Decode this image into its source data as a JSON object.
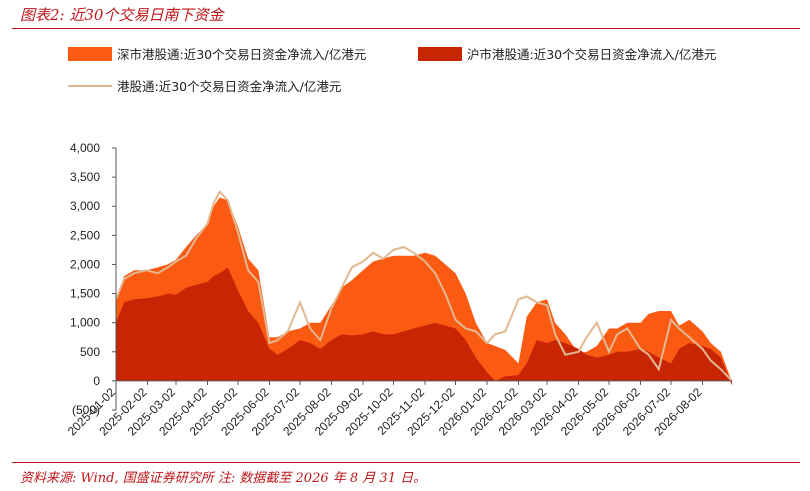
{
  "figure_title": "图表2:  近30个交易日南下资金",
  "source_note": "资料来源:  Wind, 国盛证券研究所    注:  数据截至 2026 年 8 月 31 日。",
  "colors": {
    "shenzhen": "#fb5a13",
    "shanghai": "#c82505",
    "total": "#e2b891",
    "accent": "#c0161a"
  },
  "chart_data": {
    "type": "area",
    "legend": [
      "深市港股通:近30个交易日资金净流入/亿港元",
      "沪市港股通:近30个交易日资金净流入/亿港元",
      "港股通:近30个交易日资金净流入/亿港元"
    ],
    "legend_placement": "top",
    "ylim": [
      -500,
      4000
    ],
    "yticks": [
      "(500)",
      "0",
      "500",
      "1,000",
      "1,500",
      "2,000",
      "2,500",
      "3,000",
      "3,500",
      "4,000"
    ],
    "ytick_values": [
      -500,
      0,
      500,
      1000,
      1500,
      2000,
      2500,
      3000,
      3500,
      4000
    ],
    "xlim": [
      "2025-01-02",
      "2026-08-31"
    ],
    "xticks": [
      "2025-01-02",
      "2025-02-02",
      "2025-03-02",
      "2025-04-02",
      "2025-05-02",
      "2025-06-02",
      "2025-07-02",
      "2025-08-02",
      "2025-09-02",
      "2025-10-02",
      "2025-11-02",
      "2025-12-02",
      "2026-01-02",
      "2026-02-02",
      "2026-03-02",
      "2026-04-02",
      "2026-05-02",
      "2026-06-02",
      "2026-07-02",
      "2026-08-02"
    ],
    "grid": false,
    "x": [
      "2025-01-02",
      "2025-01-10",
      "2025-01-20",
      "2025-02-01",
      "2025-02-12",
      "2025-02-22",
      "2025-03-02",
      "2025-03-12",
      "2025-03-22",
      "2025-04-02",
      "2025-04-08",
      "2025-04-14",
      "2025-04-22",
      "2025-05-02",
      "2025-05-12",
      "2025-05-22",
      "2025-06-02",
      "2025-06-10",
      "2025-06-20",
      "2025-07-02",
      "2025-07-12",
      "2025-07-22",
      "2025-08-02",
      "2025-08-12",
      "2025-08-22",
      "2025-09-02",
      "2025-09-12",
      "2025-09-22",
      "2025-10-02",
      "2025-10-12",
      "2025-10-22",
      "2025-11-02",
      "2025-11-12",
      "2025-11-22",
      "2025-12-02",
      "2025-12-12",
      "2025-12-22",
      "2026-01-02",
      "2026-01-10",
      "2026-01-20",
      "2026-02-02",
      "2026-02-10",
      "2026-02-20",
      "2026-03-02",
      "2026-03-10",
      "2026-03-20",
      "2026-04-02",
      "2026-04-10",
      "2026-04-20",
      "2026-05-02",
      "2026-05-10",
      "2026-05-20",
      "2026-06-02",
      "2026-06-10",
      "2026-06-20",
      "2026-07-02",
      "2026-07-10",
      "2026-07-20",
      "2026-08-02",
      "2026-08-10",
      "2026-08-20",
      "2026-08-31"
    ],
    "series": [
      {
        "name": "沪市港股通:近30个交易日资金净流入/亿港元",
        "values": [
          1000,
          1350,
          1400,
          1420,
          1450,
          1500,
          1480,
          1600,
          1650,
          1700,
          1800,
          1850,
          1950,
          1550,
          1200,
          1000,
          550,
          450,
          550,
          700,
          650,
          550,
          700,
          800,
          780,
          800,
          850,
          800,
          800,
          850,
          900,
          950,
          1000,
          950,
          900,
          700,
          400,
          150,
          0,
          80,
          100,
          300,
          700,
          650,
          700,
          650,
          550,
          450,
          400,
          450,
          500,
          500,
          550,
          500,
          400,
          300,
          550,
          650,
          600,
          550,
          400,
          -80
        ]
      },
      {
        "name": "深市港股通:近30个交易日资金净流入/亿港元",
        "values": [
          400,
          450,
          500,
          480,
          500,
          500,
          600,
          700,
          850,
          1000,
          1200,
          1300,
          1150,
          1100,
          900,
          900,
          200,
          300,
          300,
          200,
          350,
          450,
          600,
          800,
          950,
          1100,
          1200,
          1300,
          1350,
          1300,
          1250,
          1250,
          1150,
          1050,
          950,
          800,
          600,
          500,
          600,
          450,
          200,
          800,
          650,
          750,
          300,
          150,
          -80,
          50,
          200,
          450,
          400,
          500,
          450,
          650,
          800,
          900,
          400,
          400,
          250,
          100,
          100,
          60
        ]
      },
      {
        "name": "港股通:近30个交易日资金净流入/亿港元",
        "values": [
          1400,
          1750,
          1850,
          1900,
          1850,
          1950,
          2050,
          2150,
          2450,
          2700,
          3050,
          3250,
          3100,
          2550,
          1900,
          1700,
          650,
          700,
          850,
          1350,
          900,
          700,
          1250,
          1600,
          1950,
          2050,
          2200,
          2100,
          2250,
          2300,
          2200,
          2050,
          1850,
          1500,
          1050,
          900,
          850,
          650,
          800,
          850,
          1400,
          1450,
          1350,
          1300,
          800,
          450,
          500,
          750,
          1000,
          500,
          800,
          900,
          550,
          450,
          200,
          1050,
          900,
          750,
          550,
          350,
          200,
          0
        ]
      }
    ]
  }
}
